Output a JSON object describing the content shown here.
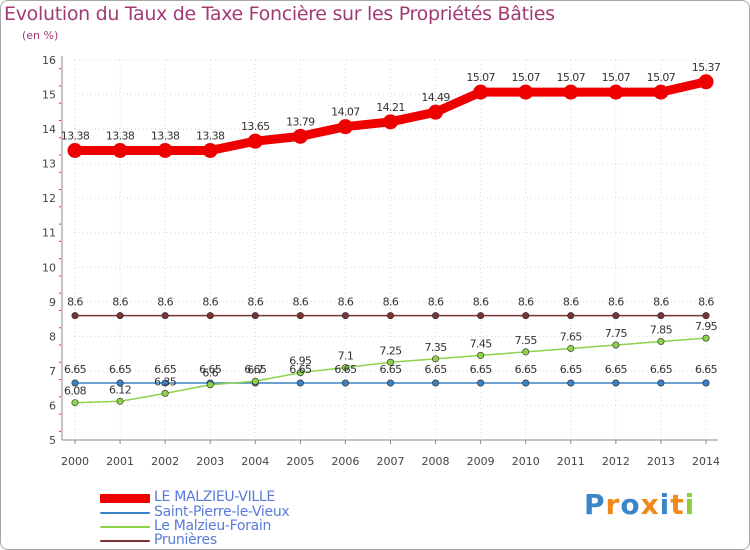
{
  "chart_data": {
    "type": "line",
    "title": "Evolution du Taux de Taxe Foncière sur les Propriétés Bâties",
    "ylabel": "(en %)",
    "xlabel": "",
    "ylim": [
      5,
      16
    ],
    "yticks": [
      "5",
      "6",
      "7",
      "8",
      "9",
      "10",
      "11",
      "12",
      "13",
      "14",
      "15",
      "16"
    ],
    "categories": [
      "2000",
      "2001",
      "2002",
      "2003",
      "2004",
      "2005",
      "2006",
      "2007",
      "2008",
      "2009",
      "2010",
      "2011",
      "2012",
      "2013",
      "2014"
    ],
    "series": [
      {
        "name": "LE MALZIEU-VILLE",
        "color": "#ef0000",
        "values": [
          13.38,
          13.38,
          13.38,
          13.38,
          13.65,
          13.79,
          14.07,
          14.21,
          14.49,
          15.07,
          15.07,
          15.07,
          15.07,
          15.07,
          15.37
        ],
        "labels": [
          "13.38",
          "13.38",
          "13.38",
          "13.38",
          "13.65",
          "13.79",
          "14.07",
          "14.21",
          "14.49",
          "15.07",
          "15.07",
          "15.07",
          "15.07",
          "15.07",
          "15.37"
        ]
      },
      {
        "name": "Saint-Pierre-le-Vieux",
        "color": "#3b82c4",
        "values": [
          6.65,
          6.65,
          6.65,
          6.65,
          6.65,
          6.65,
          6.65,
          6.65,
          6.65,
          6.65,
          6.65,
          6.65,
          6.65,
          6.65,
          6.65
        ],
        "labels": [
          "6.65",
          "6.65",
          "6.65",
          "6.65",
          "6.65",
          "6.65",
          "6.65",
          "6.65",
          "6.65",
          "6.65",
          "6.65",
          "6.65",
          "6.65",
          "6.65",
          "6.65"
        ]
      },
      {
        "name": "Le Malzieu-Forain",
        "color": "#8ed24a",
        "values": [
          6.08,
          6.12,
          6.35,
          6.6,
          6.7,
          6.95,
          7.1,
          7.25,
          7.35,
          7.45,
          7.55,
          7.65,
          7.75,
          7.85,
          7.95
        ],
        "labels": [
          "6.08",
          "6.12",
          "6.35",
          "6.6",
          "6.7",
          "6.95",
          "7.1",
          "7.25",
          "7.35",
          "7.45",
          "7.55",
          "7.65",
          "7.75",
          "7.85",
          "7.95"
        ]
      },
      {
        "name": "Prunières",
        "color": "#7b3434",
        "values": [
          8.6,
          8.6,
          8.6,
          8.6,
          8.6,
          8.6,
          8.6,
          8.6,
          8.6,
          8.6,
          8.6,
          8.6,
          8.6,
          8.6,
          8.6
        ],
        "labels": [
          "8.6",
          "8.6",
          "8.6",
          "8.6",
          "8.6",
          "8.6",
          "8.6",
          "8.6",
          "8.6",
          "8.6",
          "8.6",
          "8.6",
          "8.6",
          "8.6",
          "8.6"
        ]
      }
    ]
  },
  "logo": {
    "letters": [
      "P",
      "r",
      "o",
      "x",
      "i",
      "t",
      "i"
    ],
    "colors": [
      "#3a86c8",
      "#f08a1c",
      "#3a86c8",
      "#f08a1c",
      "#3a86c8",
      "#f08a1c",
      "#8ccc3c"
    ]
  }
}
